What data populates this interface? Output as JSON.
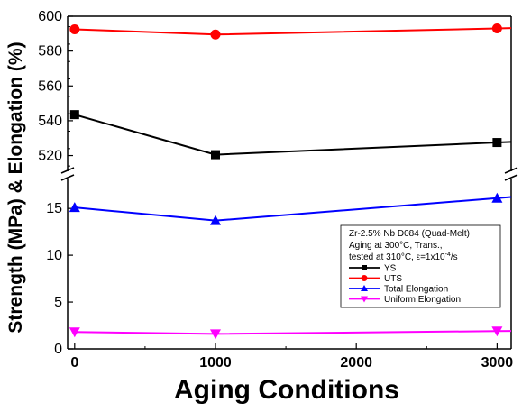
{
  "chart_data": {
    "type": "line",
    "xlabel": "Aging Conditions",
    "ylabel": "Strength (MPa) & Elongation (%)",
    "x": [
      0,
      1000,
      3000
    ],
    "xlim": [
      -50,
      3100
    ],
    "x_ticks": [
      0,
      1000,
      2000,
      3000
    ],
    "broken_y_axis": true,
    "upper_ylim": [
      512,
      600
    ],
    "upper_ticks": [
      520,
      540,
      560,
      580,
      600
    ],
    "lower_ylim": [
      0,
      18
    ],
    "lower_ticks": [
      0,
      5,
      10,
      15
    ],
    "series": [
      {
        "name": "YS",
        "values": [
          543.5,
          520.5,
          527.5
        ],
        "color": "#000000",
        "marker": "square",
        "panel": "upper"
      },
      {
        "name": "UTS",
        "values": [
          592.5,
          589.5,
          593
        ],
        "color": "#ff0000",
        "marker": "circle",
        "panel": "upper"
      },
      {
        "name": "Total Elongation",
        "values": [
          15.1,
          13.7,
          16.1
        ],
        "color": "#0000ff",
        "marker": "triangle-up",
        "panel": "lower"
      },
      {
        "name": "Uniform Elongation",
        "values": [
          1.8,
          1.6,
          1.9
        ],
        "color": "#ff00ff",
        "marker": "triangle-down",
        "panel": "lower"
      }
    ],
    "annotation": {
      "line1": "Zr-2.5% Nb D084 (Quad-Melt)",
      "line2": "Aging at 300°C, Trans.,",
      "line3_prefix": "tested at 310°C, ",
      "line3_epsilon": "ε",
      "line3_rate": "=1x10",
      "line3_exp": "-4",
      "line3_unit": "/s"
    },
    "legend_position": "lower-right",
    "grid": false
  }
}
